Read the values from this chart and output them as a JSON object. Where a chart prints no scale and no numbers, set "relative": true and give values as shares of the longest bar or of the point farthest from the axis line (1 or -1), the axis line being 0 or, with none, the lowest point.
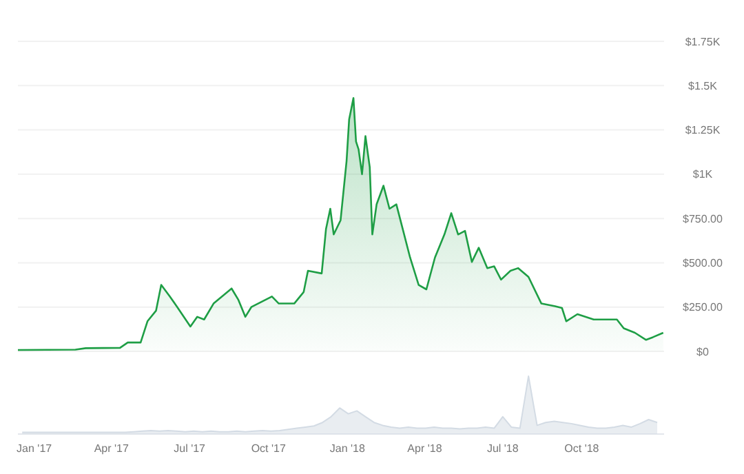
{
  "chart_data": [
    {
      "type": "area",
      "x": [
        "2016-12-13",
        "2017-02-18",
        "2017-03-02",
        "2017-04-11",
        "2017-04-20",
        "2017-05-05",
        "2017-05-13",
        "2017-05-23",
        "2017-05-29",
        "2017-06-08",
        "2017-06-16",
        "2017-07-02",
        "2017-07-10",
        "2017-07-18",
        "2017-07-29",
        "2017-08-19",
        "2017-08-27",
        "2017-09-04",
        "2017-09-11",
        "2017-10-05",
        "2017-10-13",
        "2017-10-31",
        "2017-11-11",
        "2017-11-16",
        "2017-12-02",
        "2017-12-07",
        "2017-12-12",
        "2017-12-16",
        "2017-12-24",
        "2017-12-31",
        "2018-01-03",
        "2018-01-08",
        "2018-01-11",
        "2018-01-14",
        "2018-01-18",
        "2018-01-22",
        "2018-01-27",
        "2018-01-30",
        "2018-02-04",
        "2018-02-12",
        "2018-02-19",
        "2018-02-27",
        "2018-03-07",
        "2018-03-15",
        "2018-03-25",
        "2018-04-03",
        "2018-04-13",
        "2018-04-24",
        "2018-05-02",
        "2018-05-10",
        "2018-05-18",
        "2018-05-26",
        "2018-06-03",
        "2018-06-13",
        "2018-06-21",
        "2018-06-29",
        "2018-07-10",
        "2018-07-19",
        "2018-07-31",
        "2018-08-15",
        "2018-08-31",
        "2018-09-08",
        "2018-09-13",
        "2018-09-26",
        "2018-10-15",
        "2018-11-11",
        "2018-11-19",
        "2018-12-02",
        "2018-12-15",
        "2018-12-23",
        "2019-01-04"
      ],
      "series": [
        {
          "color": "#1e9e45",
          "values": [
            8,
            10,
            18,
            20,
            50,
            50,
            170,
            230,
            375,
            310,
            255,
            140,
            195,
            180,
            270,
            355,
            290,
            195,
            250,
            310,
            270,
            270,
            335,
            455,
            440,
            690,
            805,
            660,
            740,
            1075,
            1310,
            1430,
            1185,
            1140,
            1000,
            1215,
            1040,
            660,
            830,
            935,
            805,
            830,
            680,
            530,
            375,
            350,
            530,
            660,
            780,
            660,
            680,
            505,
            585,
            470,
            480,
            405,
            455,
            470,
            420,
            270,
            255,
            245,
            170,
            210,
            180,
            180,
            130,
            105,
            65,
            80,
            105
          ]
        }
      ],
      "xlim": [
        "2016-12-13",
        "2019-01-05"
      ],
      "ylim": [
        0,
        1750
      ],
      "yticks": [
        {
          "value": 0,
          "label": "$0"
        },
        {
          "value": 250,
          "label": "$250.00"
        },
        {
          "value": 500,
          "label": "$500.00"
        },
        {
          "value": 750,
          "label": "$750.00"
        },
        {
          "value": 1000,
          "label": "$1K"
        },
        {
          "value": 1250,
          "label": "$1.25K"
        },
        {
          "value": 1500,
          "label": "$1.5K"
        },
        {
          "value": 1750,
          "label": "$1.75K"
        }
      ],
      "tick_labels": "y",
      "grid": "y"
    },
    {
      "type": "area",
      "relative": true,
      "color": "#d3dbe4",
      "x": [
        "2016-12-18",
        "2016-12-28",
        "2017-01-07",
        "2017-01-17",
        "2017-01-27",
        "2017-02-06",
        "2017-02-16",
        "2017-02-26",
        "2017-03-08",
        "2017-03-18",
        "2017-03-28",
        "2017-04-07",
        "2017-04-17",
        "2017-04-27",
        "2017-05-07",
        "2017-05-17",
        "2017-05-27",
        "2017-06-06",
        "2017-06-16",
        "2017-06-26",
        "2017-07-06",
        "2017-07-16",
        "2017-07-26",
        "2017-08-05",
        "2017-08-15",
        "2017-08-25",
        "2017-09-04",
        "2017-09-14",
        "2017-09-24",
        "2017-10-04",
        "2017-10-14",
        "2017-10-24",
        "2017-11-03",
        "2017-11-13",
        "2017-11-23",
        "2017-12-03",
        "2017-12-13",
        "2017-12-23",
        "2018-01-02",
        "2018-01-12",
        "2018-01-22",
        "2018-02-01",
        "2018-02-11",
        "2018-02-21",
        "2018-03-03",
        "2018-03-13",
        "2018-03-23",
        "2018-04-02",
        "2018-04-12",
        "2018-04-22",
        "2018-05-02",
        "2018-05-12",
        "2018-05-22",
        "2018-06-01",
        "2018-06-11",
        "2018-06-21",
        "2018-07-01",
        "2018-07-11",
        "2018-07-21",
        "2018-07-31",
        "2018-08-10",
        "2018-08-20",
        "2018-08-30",
        "2018-09-09",
        "2018-09-19",
        "2018-09-29",
        "2018-10-09",
        "2018-10-19",
        "2018-10-29",
        "2018-11-08",
        "2018-11-18",
        "2018-11-28",
        "2018-12-08",
        "2018-12-18",
        "2018-12-28"
      ],
      "values": [
        0.03,
        0.03,
        0.03,
        0.03,
        0.03,
        0.03,
        0.03,
        0.03,
        0.03,
        0.03,
        0.03,
        0.03,
        0.03,
        0.04,
        0.05,
        0.06,
        0.05,
        0.06,
        0.05,
        0.04,
        0.05,
        0.04,
        0.05,
        0.04,
        0.04,
        0.05,
        0.04,
        0.05,
        0.06,
        0.05,
        0.06,
        0.08,
        0.1,
        0.12,
        0.14,
        0.2,
        0.3,
        0.45,
        0.35,
        0.4,
        0.3,
        0.2,
        0.15,
        0.12,
        0.1,
        0.12,
        0.1,
        0.1,
        0.12,
        0.1,
        0.1,
        0.09,
        0.1,
        0.1,
        0.12,
        0.1,
        0.3,
        0.12,
        0.1,
        1,
        0.15,
        0.2,
        0.22,
        0.2,
        0.18,
        0.15,
        0.12,
        0.1,
        0.1,
        0.12,
        0.15,
        0.12,
        0.18,
        0.25,
        0.2
      ],
      "xlim": [
        "2016-12-13",
        "2019-01-05"
      ],
      "xticks": [
        {
          "value": "2017-01-01",
          "label": "Jan '17"
        },
        {
          "value": "2017-04-01",
          "label": "Apr '17"
        },
        {
          "value": "2017-07-01",
          "label": "Jul '17"
        },
        {
          "value": "2017-10-01",
          "label": "Oct '17"
        },
        {
          "value": "2018-01-01",
          "label": "Jan '18"
        },
        {
          "value": "2018-04-01",
          "label": "Apr '18"
        },
        {
          "value": "2018-07-01",
          "label": "Jul '18"
        },
        {
          "value": "2018-10-01",
          "label": "Oct '18"
        }
      ]
    }
  ]
}
